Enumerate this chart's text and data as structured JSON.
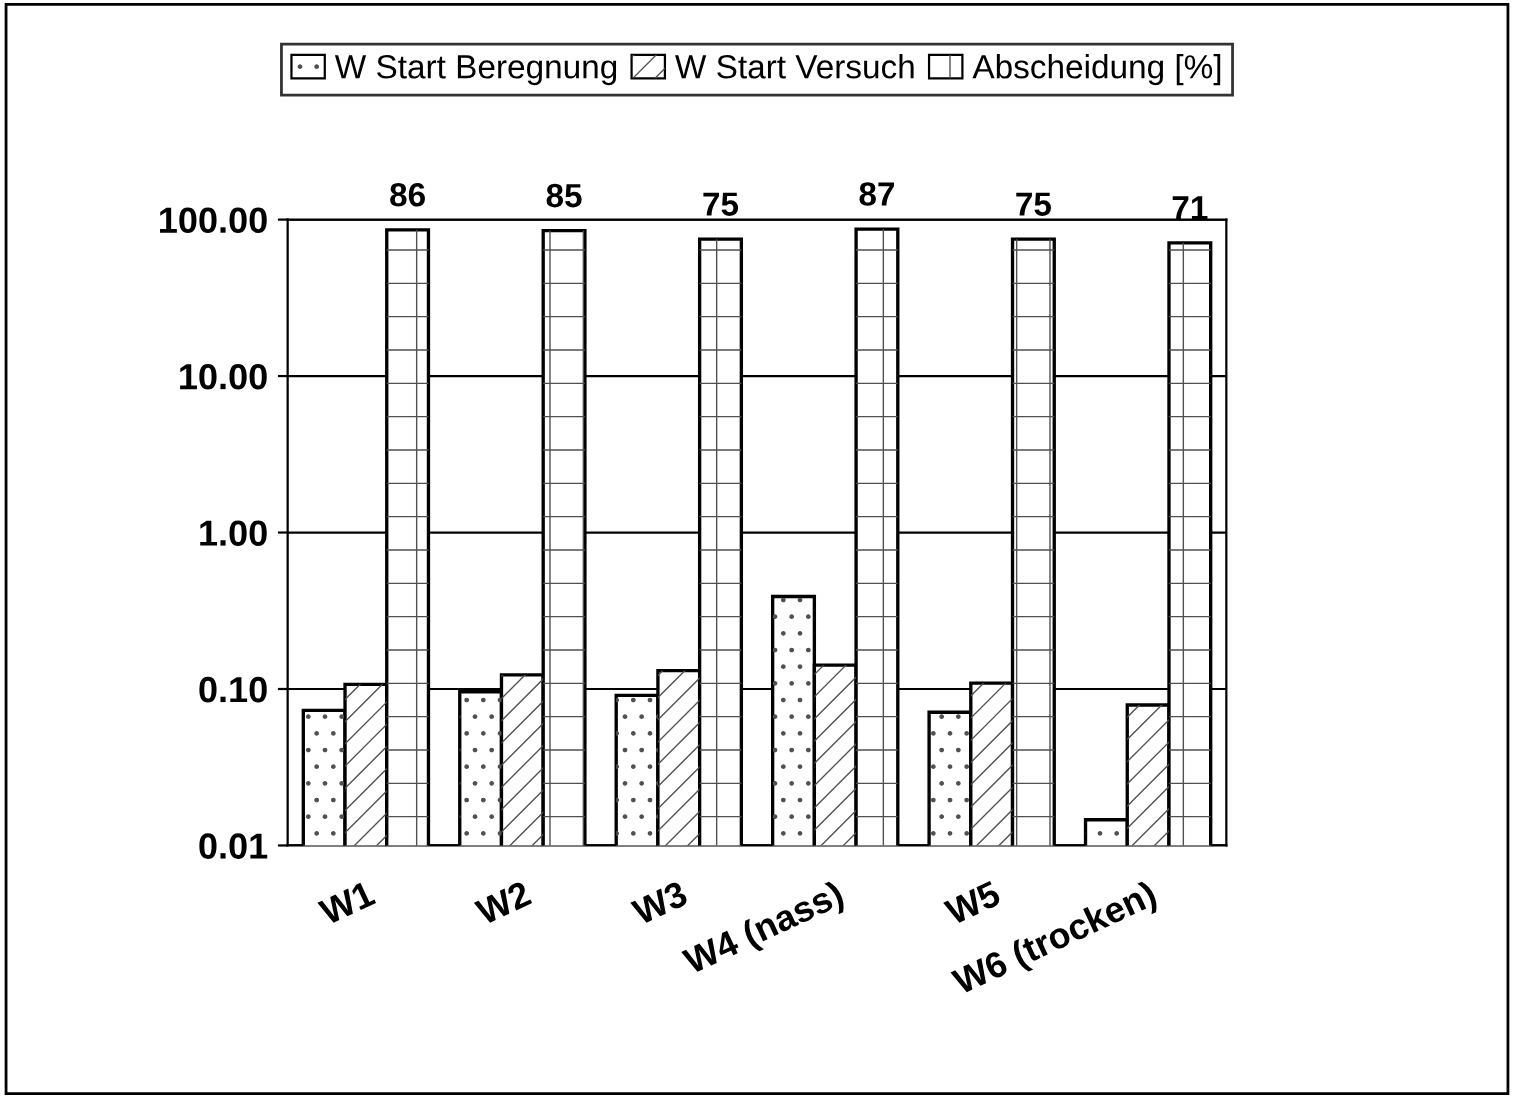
{
  "chart_data": {
    "type": "bar",
    "categories": [
      "W1",
      "W2",
      "W3",
      "W4 (nass)",
      "W5",
      "W6 (trocken)"
    ],
    "series": [
      {
        "name": "W Start Beregnung",
        "color": "#ffffff",
        "values": [
          0.073,
          0.096,
          0.091,
          0.39,
          0.071,
          0.0146
        ]
      },
      {
        "name": "W Start Versuch",
        "color": "#ffffff",
        "values": [
          0.107,
          0.123,
          0.131,
          0.142,
          0.109,
          0.079
        ]
      },
      {
        "name": "Abscheidung [%]",
        "color": "#ffffff",
        "values": [
          86,
          85,
          75,
          87,
          75,
          71
        ],
        "value_labels": [
          "86",
          "85",
          "75",
          "87",
          "75",
          "71"
        ]
      }
    ],
    "log": "y",
    "ylim": [
      0.01,
      100
    ],
    "yticks": [
      {
        "value": 0.01,
        "label": "0.01"
      },
      {
        "value": 0.1,
        "label": "0.10"
      },
      {
        "value": 1,
        "label": "1.00"
      },
      {
        "value": 10,
        "label": "10.00"
      },
      {
        "value": 100,
        "label": "100.00"
      }
    ],
    "grid": "y",
    "legend": "top"
  }
}
